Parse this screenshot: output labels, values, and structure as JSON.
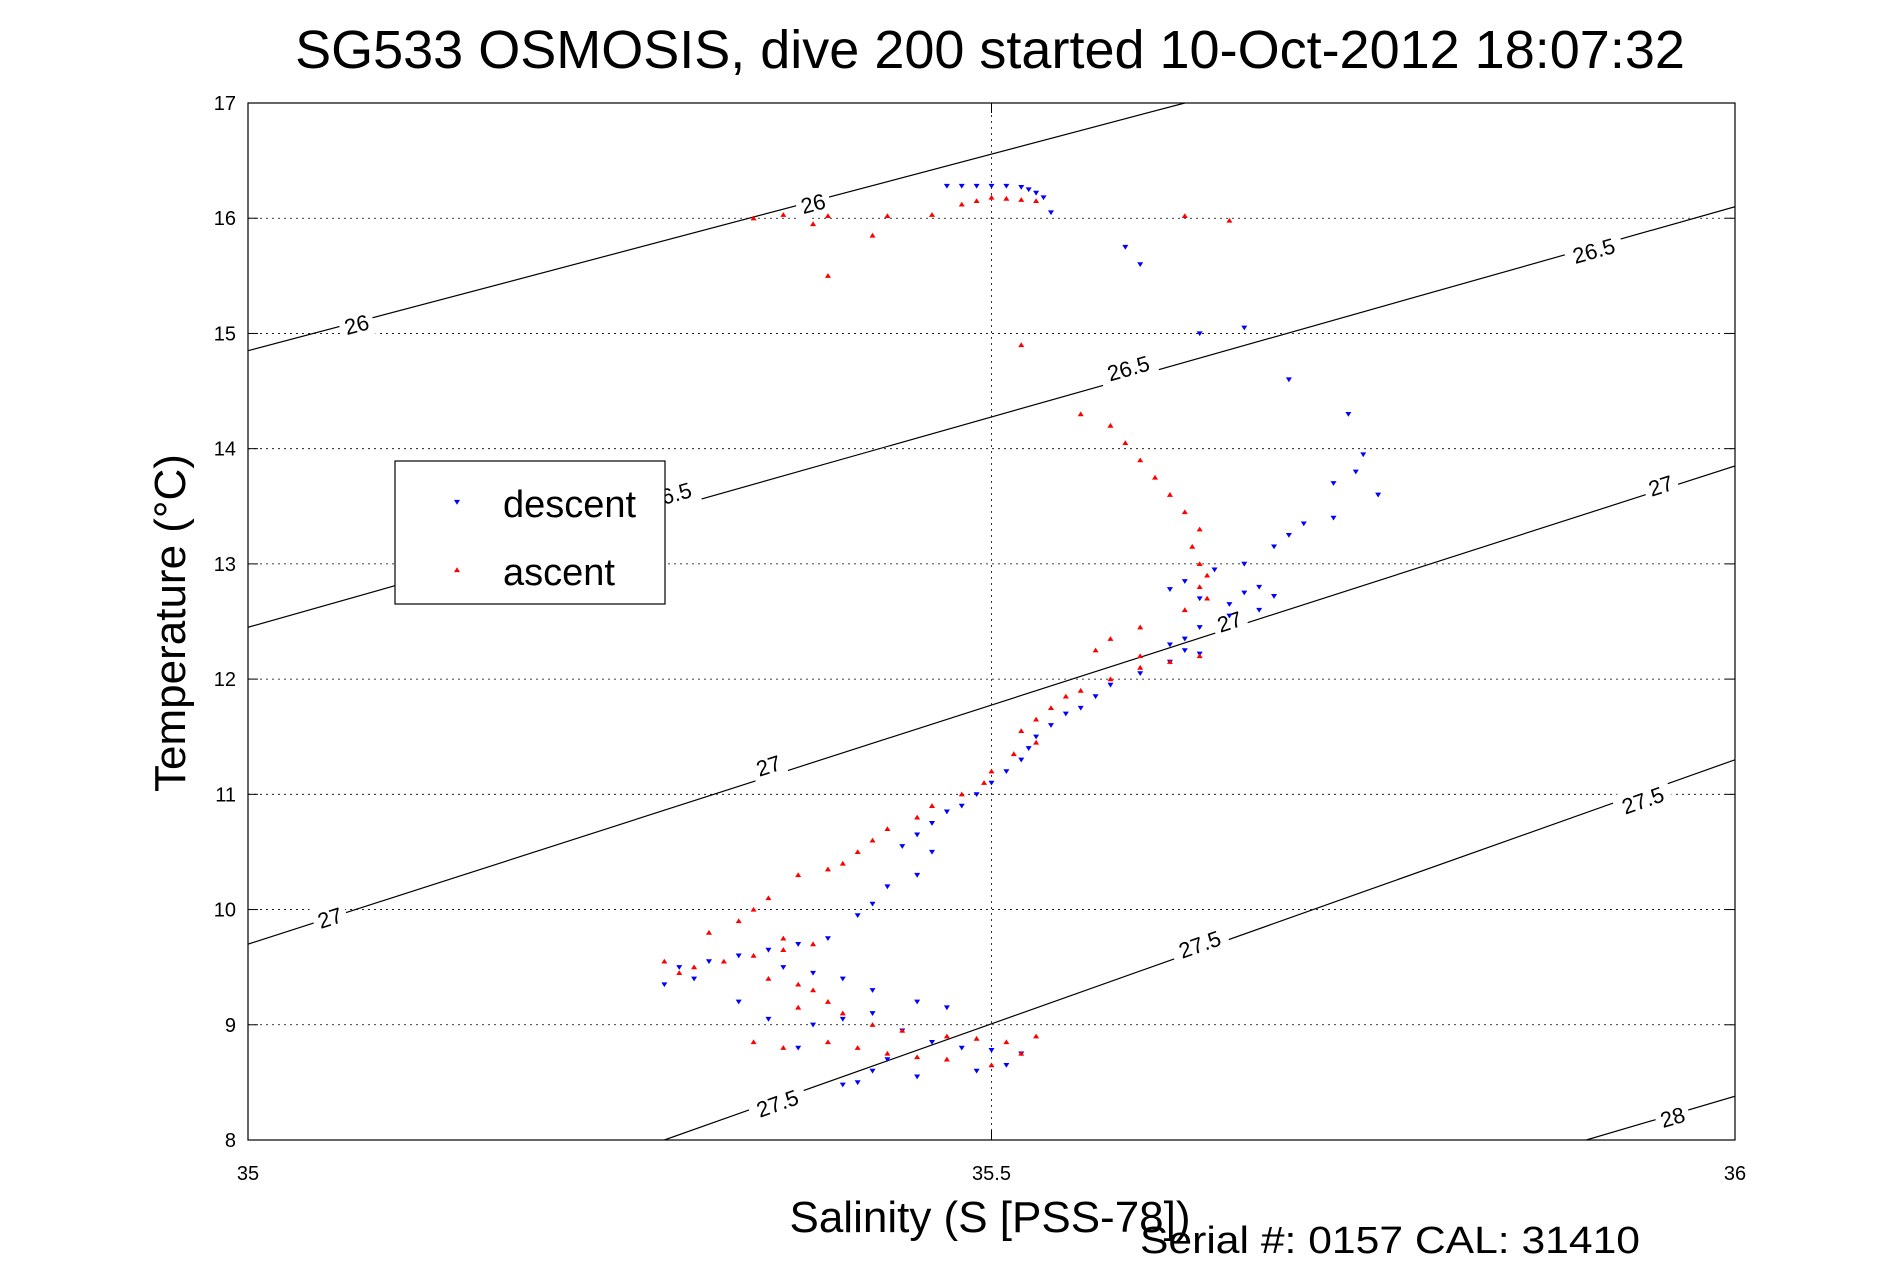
{
  "chart_data": {
    "type": "scatter",
    "title": "SG533 OSMOSIS, dive 200 started 10-Oct-2012 18:07:32",
    "xlabel": "Salinity (S [PSS-78])",
    "ylabel": "Temperature (°C)",
    "xlim": [
      35,
      36
    ],
    "ylim": [
      8,
      17
    ],
    "x_ticks": [
      35,
      35.5,
      36
    ],
    "x_tick_labels": [
      "35",
      "35.5",
      "36"
    ],
    "y_ticks": [
      8,
      9,
      10,
      11,
      12,
      13,
      14,
      15,
      16,
      17
    ],
    "y_tick_labels": [
      "8",
      "9",
      "10",
      "11",
      "12",
      "13",
      "14",
      "15",
      "16",
      "17"
    ],
    "grid": true,
    "legend_position": "upper-left",
    "footer": "Serial #: 0157  CAL: 31410",
    "density_contours": [
      {
        "label": "26",
        "points": [
          [
            35,
            14.85
          ],
          [
            35.63,
            17.0
          ]
        ],
        "labels_at": [
          [
            35.073,
            15.08
          ],
          [
            35.38,
            16.13
          ]
        ]
      },
      {
        "label": "26.5",
        "points": [
          [
            35,
            12.45
          ],
          [
            36,
            16.1
          ]
        ],
        "labels_at": [
          [
            35.284,
            13.6
          ],
          [
            35.592,
            14.7
          ],
          [
            35.905,
            15.72
          ]
        ]
      },
      {
        "label": "27",
        "points": [
          [
            35,
            9.7
          ],
          [
            36,
            13.85
          ]
        ],
        "labels_at": [
          [
            35.055,
            9.93
          ],
          [
            35.35,
            11.25
          ],
          [
            35.66,
            12.5
          ],
          [
            35.95,
            13.68
          ]
        ]
      },
      {
        "label": "27.5",
        "points": [
          [
            35.28,
            8.0
          ],
          [
            36,
            11.3
          ]
        ],
        "labels_at": [
          [
            35.356,
            8.32
          ],
          [
            35.64,
            9.7
          ],
          [
            35.938,
            10.95
          ]
        ]
      },
      {
        "label": "28",
        "points": [
          [
            35.9,
            8.0
          ],
          [
            36,
            8.38
          ]
        ],
        "labels_at": [
          [
            35.958,
            8.2
          ]
        ]
      }
    ],
    "series": [
      {
        "name": "descent",
        "color": "#0000ff",
        "marker": "triangle-down",
        "points": [
          [
            35.47,
            16.28
          ],
          [
            35.48,
            16.28
          ],
          [
            35.49,
            16.28
          ],
          [
            35.5,
            16.28
          ],
          [
            35.51,
            16.28
          ],
          [
            35.52,
            16.27
          ],
          [
            35.525,
            16.25
          ],
          [
            35.53,
            16.22
          ],
          [
            35.535,
            16.18
          ],
          [
            35.54,
            16.05
          ],
          [
            35.59,
            15.75
          ],
          [
            35.6,
            15.6
          ],
          [
            35.64,
            15.0
          ],
          [
            35.67,
            15.05
          ],
          [
            35.7,
            14.6
          ],
          [
            35.74,
            14.3
          ],
          [
            35.75,
            13.95
          ],
          [
            35.745,
            13.8
          ],
          [
            35.73,
            13.7
          ],
          [
            35.76,
            13.6
          ],
          [
            35.73,
            13.4
          ],
          [
            35.71,
            13.35
          ],
          [
            35.7,
            13.25
          ],
          [
            35.69,
            13.15
          ],
          [
            35.67,
            13.0
          ],
          [
            35.65,
            12.95
          ],
          [
            35.63,
            12.85
          ],
          [
            35.62,
            12.78
          ],
          [
            35.64,
            12.7
          ],
          [
            35.66,
            12.65
          ],
          [
            35.67,
            12.75
          ],
          [
            35.68,
            12.8
          ],
          [
            35.69,
            12.72
          ],
          [
            35.68,
            12.6
          ],
          [
            35.66,
            12.55
          ],
          [
            35.64,
            12.45
          ],
          [
            35.63,
            12.35
          ],
          [
            35.62,
            12.3
          ],
          [
            35.63,
            12.25
          ],
          [
            35.64,
            12.22
          ],
          [
            35.62,
            12.15
          ],
          [
            35.6,
            12.05
          ],
          [
            35.58,
            11.95
          ],
          [
            35.57,
            11.85
          ],
          [
            35.56,
            11.75
          ],
          [
            35.55,
            11.7
          ],
          [
            35.54,
            11.6
          ],
          [
            35.53,
            11.5
          ],
          [
            35.525,
            11.4
          ],
          [
            35.52,
            11.3
          ],
          [
            35.51,
            11.2
          ],
          [
            35.5,
            11.1
          ],
          [
            35.49,
            11.0
          ],
          [
            35.48,
            10.9
          ],
          [
            35.47,
            10.85
          ],
          [
            35.46,
            10.75
          ],
          [
            35.45,
            10.65
          ],
          [
            35.44,
            10.55
          ],
          [
            35.46,
            10.5
          ],
          [
            35.45,
            10.3
          ],
          [
            35.43,
            10.2
          ],
          [
            35.42,
            10.05
          ],
          [
            35.41,
            9.95
          ],
          [
            35.39,
            9.75
          ],
          [
            35.37,
            9.7
          ],
          [
            35.35,
            9.65
          ],
          [
            35.33,
            9.6
          ],
          [
            35.31,
            9.55
          ],
          [
            35.29,
            9.5
          ],
          [
            35.3,
            9.4
          ],
          [
            35.28,
            9.35
          ],
          [
            35.36,
            9.5
          ],
          [
            35.38,
            9.45
          ],
          [
            35.4,
            9.4
          ],
          [
            35.42,
            9.3
          ],
          [
            35.45,
            9.2
          ],
          [
            35.47,
            9.15
          ],
          [
            35.42,
            9.1
          ],
          [
            35.4,
            9.05
          ],
          [
            35.38,
            9.0
          ],
          [
            35.44,
            8.95
          ],
          [
            35.46,
            8.85
          ],
          [
            35.48,
            8.8
          ],
          [
            35.5,
            8.78
          ],
          [
            35.52,
            8.75
          ],
          [
            35.51,
            8.65
          ],
          [
            35.49,
            8.6
          ],
          [
            35.43,
            8.7
          ],
          [
            35.42,
            8.6
          ],
          [
            35.41,
            8.5
          ],
          [
            35.4,
            8.48
          ],
          [
            35.45,
            8.55
          ],
          [
            35.37,
            8.8
          ],
          [
            35.35,
            9.05
          ],
          [
            35.33,
            9.2
          ]
        ]
      },
      {
        "name": "ascent",
        "color": "#ff0000",
        "marker": "triangle-up",
        "points": [
          [
            35.5,
            16.18
          ],
          [
            35.51,
            16.17
          ],
          [
            35.52,
            16.16
          ],
          [
            35.53,
            16.15
          ],
          [
            35.49,
            16.15
          ],
          [
            35.48,
            16.12
          ],
          [
            35.46,
            16.03
          ],
          [
            35.43,
            16.02
          ],
          [
            35.39,
            16.02
          ],
          [
            35.36,
            16.03
          ],
          [
            35.34,
            16.0
          ],
          [
            35.38,
            15.95
          ],
          [
            35.42,
            15.85
          ],
          [
            35.39,
            15.5
          ],
          [
            35.52,
            14.9
          ],
          [
            35.63,
            16.02
          ],
          [
            35.66,
            15.98
          ],
          [
            35.56,
            14.3
          ],
          [
            35.58,
            14.2
          ],
          [
            35.59,
            14.05
          ],
          [
            35.6,
            13.9
          ],
          [
            35.61,
            13.75
          ],
          [
            35.62,
            13.6
          ],
          [
            35.63,
            13.45
          ],
          [
            35.64,
            13.3
          ],
          [
            35.635,
            13.15
          ],
          [
            35.64,
            13.0
          ],
          [
            35.645,
            12.9
          ],
          [
            35.64,
            12.8
          ],
          [
            35.645,
            12.7
          ],
          [
            35.63,
            12.6
          ],
          [
            35.6,
            12.45
          ],
          [
            35.58,
            12.35
          ],
          [
            35.57,
            12.25
          ],
          [
            35.6,
            12.2
          ],
          [
            35.62,
            12.15
          ],
          [
            35.64,
            12.2
          ],
          [
            35.6,
            12.1
          ],
          [
            35.58,
            12.0
          ],
          [
            35.56,
            11.9
          ],
          [
            35.55,
            11.85
          ],
          [
            35.54,
            11.75
          ],
          [
            35.53,
            11.65
          ],
          [
            35.52,
            11.55
          ],
          [
            35.53,
            11.45
          ],
          [
            35.515,
            11.35
          ],
          [
            35.5,
            11.2
          ],
          [
            35.495,
            11.1
          ],
          [
            35.48,
            11.0
          ],
          [
            35.46,
            10.9
          ],
          [
            35.45,
            10.8
          ],
          [
            35.43,
            10.7
          ],
          [
            35.42,
            10.6
          ],
          [
            35.41,
            10.5
          ],
          [
            35.4,
            10.4
          ],
          [
            35.39,
            10.35
          ],
          [
            35.37,
            10.3
          ],
          [
            35.35,
            10.1
          ],
          [
            35.34,
            10.0
          ],
          [
            35.33,
            9.9
          ],
          [
            35.31,
            9.8
          ],
          [
            35.36,
            9.75
          ],
          [
            35.38,
            9.7
          ],
          [
            35.36,
            9.65
          ],
          [
            35.34,
            9.6
          ],
          [
            35.32,
            9.55
          ],
          [
            35.3,
            9.5
          ],
          [
            35.28,
            9.55
          ],
          [
            35.29,
            9.45
          ],
          [
            35.35,
            9.4
          ],
          [
            35.37,
            9.35
          ],
          [
            35.38,
            9.3
          ],
          [
            35.39,
            9.2
          ],
          [
            35.37,
            9.15
          ],
          [
            35.4,
            9.1
          ],
          [
            35.42,
            9.0
          ],
          [
            35.44,
            8.95
          ],
          [
            35.47,
            8.9
          ],
          [
            35.49,
            8.88
          ],
          [
            35.51,
            8.85
          ],
          [
            35.52,
            8.75
          ],
          [
            35.5,
            8.65
          ],
          [
            35.47,
            8.7
          ],
          [
            35.45,
            8.72
          ],
          [
            35.43,
            8.75
          ],
          [
            35.41,
            8.8
          ],
          [
            35.39,
            8.85
          ],
          [
            35.36,
            8.8
          ],
          [
            35.34,
            8.85
          ],
          [
            35.53,
            8.9
          ]
        ]
      }
    ]
  }
}
